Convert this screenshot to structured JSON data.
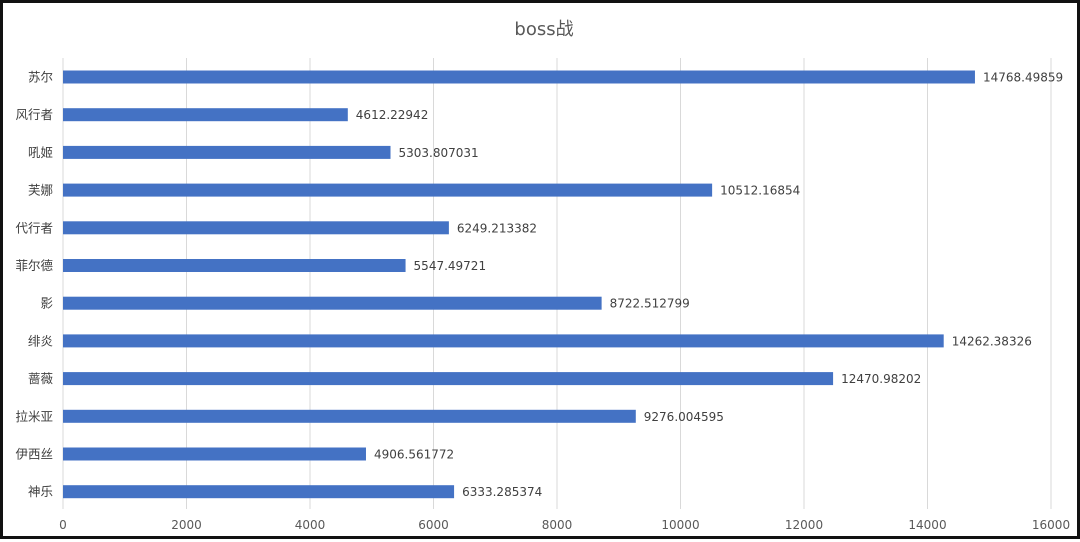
{
  "chart_data": {
    "type": "bar",
    "orientation": "horizontal",
    "title": "boss战",
    "categories": [
      "苏尔",
      "风行者",
      "吼姬",
      "芙娜",
      "代行者",
      "菲尔德",
      "影",
      "绯炎",
      "蔷薇",
      "拉米亚",
      "伊西丝",
      "神乐"
    ],
    "values": [
      14768.49859,
      4612.22942,
      5303.807031,
      10512.16854,
      6249.213382,
      5547.49721,
      8722.512799,
      14262.38326,
      12470.98202,
      9276.004595,
      4906.561772,
      6333.285374
    ],
    "value_labels": [
      "14768.49859",
      "4612.22942",
      "5303.807031",
      "10512.16854",
      "6249.213382",
      "5547.49721",
      "8722.512799",
      "14262.38326",
      "12470.98202",
      "9276.004595",
      "4906.561772",
      "6333.285374"
    ],
    "xlim": [
      0,
      16000
    ],
    "x_ticks": [
      "0",
      "2000",
      "4000",
      "6000",
      "8000",
      "10000",
      "12000",
      "14000",
      "16000"
    ],
    "xlabel": "",
    "ylabel": "",
    "grid": true,
    "legend": "none",
    "colors": {
      "bar": "#4472C4",
      "grid": "#D9D9D9",
      "text": "#404040"
    }
  }
}
